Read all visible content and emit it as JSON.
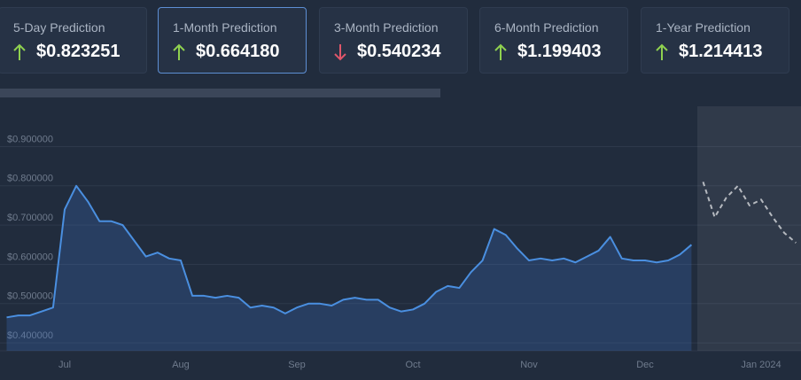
{
  "cards": [
    {
      "label": "5-Day Prediction",
      "value": "$0.823251",
      "direction": "up",
      "selected": false
    },
    {
      "label": "1-Month Prediction",
      "value": "$0.664180",
      "direction": "up",
      "selected": true
    },
    {
      "label": "3-Month Prediction",
      "value": "$0.540234",
      "direction": "down",
      "selected": false
    },
    {
      "label": "6-Month Prediction",
      "value": "$1.199403",
      "direction": "up",
      "selected": false
    },
    {
      "label": "1-Year Prediction",
      "value": "$1.214413",
      "direction": "up",
      "selected": false
    }
  ],
  "chart_data": {
    "type": "line",
    "categories": [
      null,
      null,
      null,
      null,
      null,
      "Jul",
      null,
      null,
      null,
      null,
      null,
      null,
      null,
      null,
      null,
      "Aug",
      null,
      null,
      null,
      null,
      null,
      null,
      null,
      null,
      null,
      "Sep",
      null,
      null,
      null,
      null,
      null,
      null,
      null,
      null,
      null,
      "Oct",
      null,
      null,
      null,
      null,
      null,
      null,
      null,
      null,
      null,
      "Nov",
      null,
      null,
      null,
      null,
      null,
      null,
      null,
      null,
      null,
      "Dec",
      null,
      null,
      null,
      null,
      null,
      null,
      null,
      null,
      null,
      "Jan 2024",
      null,
      null,
      null
    ],
    "series": [
      {
        "name": "Price",
        "color": "#4a8fe0",
        "values": [
          0.465,
          0.47,
          0.47,
          0.48,
          0.49,
          0.74,
          0.8,
          0.76,
          0.71,
          0.71,
          0.7,
          0.66,
          0.62,
          0.63,
          0.615,
          0.61,
          0.52,
          0.52,
          0.515,
          0.52,
          0.515,
          0.49,
          0.495,
          0.49,
          0.475,
          0.49,
          0.5,
          0.5,
          0.495,
          0.51,
          0.515,
          0.51,
          0.51,
          0.49,
          0.48,
          0.485,
          0.5,
          0.53,
          0.545,
          0.54,
          0.58,
          0.61,
          0.69,
          0.675,
          0.64,
          0.61,
          0.615,
          0.61,
          0.615,
          0.605,
          0.62,
          0.635,
          0.67,
          0.615,
          0.61,
          0.61,
          0.605,
          0.61,
          0.625,
          0.65,
          null,
          null,
          null,
          null,
          null,
          null,
          null,
          null,
          null
        ]
      },
      {
        "name": "Forecast",
        "color": "#b5b9bf",
        "dashed": true,
        "values": [
          null,
          null,
          null,
          null,
          null,
          null,
          null,
          null,
          null,
          null,
          null,
          null,
          null,
          null,
          null,
          null,
          null,
          null,
          null,
          null,
          null,
          null,
          null,
          null,
          null,
          null,
          null,
          null,
          null,
          null,
          null,
          null,
          null,
          null,
          null,
          null,
          null,
          null,
          null,
          null,
          null,
          null,
          null,
          null,
          null,
          null,
          null,
          null,
          null,
          null,
          null,
          null,
          null,
          null,
          null,
          null,
          null,
          null,
          null,
          null,
          0.81,
          0.72,
          0.77,
          0.8,
          0.75,
          0.765,
          0.72,
          0.68,
          0.655
        ]
      }
    ],
    "ylim": [
      0.38,
      0.98
    ],
    "yticks": [
      {
        "value": 0.4,
        "label": "$0.400000"
      },
      {
        "value": 0.5,
        "label": "$0.500000"
      },
      {
        "value": 0.6,
        "label": "$0.600000"
      },
      {
        "value": 0.7,
        "label": "$0.700000"
      },
      {
        "value": 0.8,
        "label": "$0.800000"
      },
      {
        "value": 0.9,
        "label": "$0.900000"
      }
    ],
    "grid": true
  }
}
